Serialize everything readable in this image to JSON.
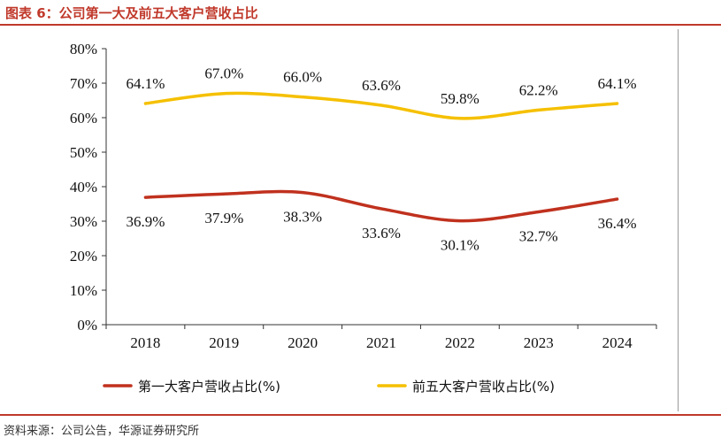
{
  "header": {
    "title": "图表 6：公司第一大及前五大客户营收占比"
  },
  "footer": {
    "source": "资料来源：公司公告，华源证券研究所"
  },
  "chart_data": {
    "type": "line",
    "x": [
      "2018",
      "2019",
      "2020",
      "2021",
      "2022",
      "2023",
      "2024"
    ],
    "ylim": [
      0,
      80
    ],
    "yticks": [
      "0%",
      "10%",
      "20%",
      "30%",
      "40%",
      "50%",
      "60%",
      "70%",
      "80%"
    ],
    "grid": false,
    "legend_position": "bottom",
    "series": [
      {
        "name": "第一大客户营收占比(%)",
        "color": "#c0311e",
        "values": [
          36.9,
          37.9,
          38.3,
          33.6,
          30.1,
          32.7,
          36.4
        ],
        "labels": [
          "36.9%",
          "37.9%",
          "38.3%",
          "33.6%",
          "30.1%",
          "32.7%",
          "36.4%"
        ]
      },
      {
        "name": "前五大客户营收占比(%)",
        "color": "#f5c000",
        "values": [
          64.1,
          67.0,
          66.0,
          63.6,
          59.8,
          62.2,
          64.1
        ],
        "labels": [
          "64.1%",
          "67.0%",
          "66.0%",
          "63.6%",
          "59.8%",
          "62.2%",
          "64.1%"
        ]
      }
    ]
  }
}
